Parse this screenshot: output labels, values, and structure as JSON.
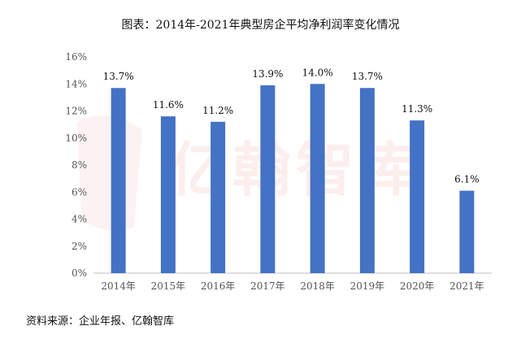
{
  "title": "图表：2014年-2021年典型房企平均净利润率变化情况",
  "source": "资料来源：企业年报、亿翰智库",
  "watermark": "亿翰智库",
  "chart_data": {
    "type": "bar",
    "categories": [
      "2014年",
      "2015年",
      "2016年",
      "2017年",
      "2018年",
      "2019年",
      "2020年",
      "2021年"
    ],
    "values": [
      13.7,
      11.6,
      11.2,
      13.9,
      14.0,
      13.7,
      11.3,
      6.1
    ],
    "data_labels": [
      "13.7%",
      "11.6%",
      "11.2%",
      "13.9%",
      "14.0%",
      "13.7%",
      "11.3%",
      "6.1%"
    ],
    "y_ticks": [
      "0%",
      "2%",
      "4%",
      "6%",
      "8%",
      "10%",
      "12%",
      "14%",
      "16%"
    ],
    "ylim": [
      0,
      16
    ],
    "bar_color": "#4472c4",
    "grid": false,
    "title": "图表：2014年-2021年典型房企平均净利润率变化情况",
    "xlabel": "",
    "ylabel": ""
  }
}
